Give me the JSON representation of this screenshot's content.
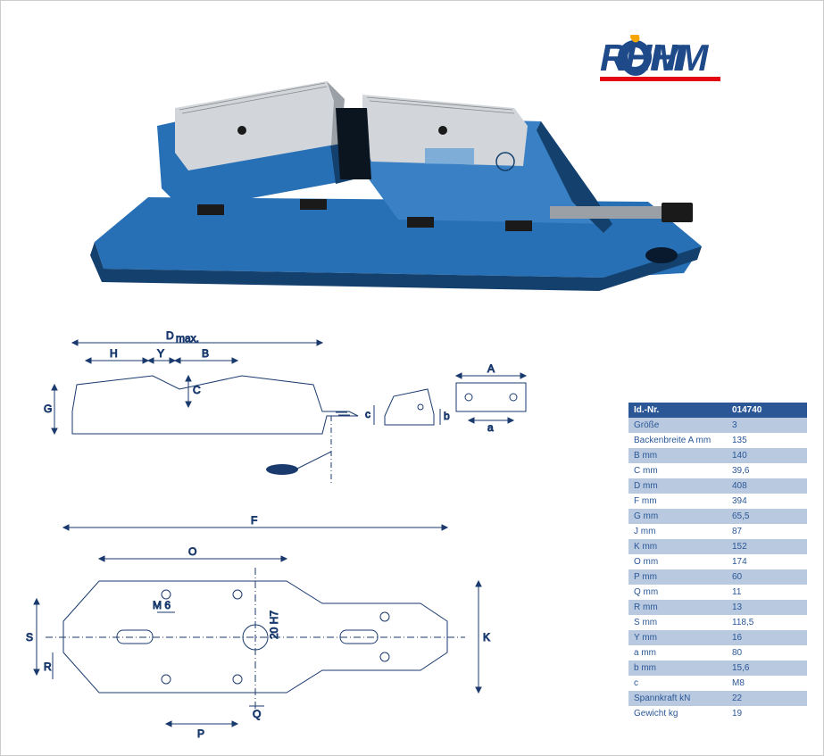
{
  "brand": "RÖHM",
  "logo": {
    "text_color": "#1e4a8a",
    "accent_color": "#e30613",
    "dot_color": "#f7a600"
  },
  "product": {
    "body_color": "#2770b5",
    "body_shadow": "#14406e",
    "jaw_color": "#c8ccd0",
    "jaw_edge": "#888c90",
    "base_dark": "#1a2838"
  },
  "diagram": {
    "stroke": "#1a3a6e",
    "labels": {
      "Dmax": "D",
      "Dmax_sub": "max.",
      "H": "H",
      "Y": "Y",
      "B": "B",
      "C": "C",
      "G": "G",
      "A": "A",
      "a": "a",
      "b": "b",
      "c": "c",
      "F": "F",
      "O": "O",
      "M6": "M 6",
      "H7": "20 H7",
      "S": "S",
      "R": "R",
      "K": "K",
      "P": "P",
      "Q": "Q"
    }
  },
  "specs": {
    "header": {
      "label": "Id.-Nr.",
      "value": "014740"
    },
    "rows": [
      {
        "label": "Größe",
        "value": "3",
        "style": "blue"
      },
      {
        "label": "Backenbreite A mm",
        "value": "135",
        "style": "white"
      },
      {
        "label": "B mm",
        "value": "140",
        "style": "blue"
      },
      {
        "label": "C mm",
        "value": "39,6",
        "style": "white"
      },
      {
        "label": "D mm",
        "value": "408",
        "style": "blue"
      },
      {
        "label": "F mm",
        "value": "394",
        "style": "white"
      },
      {
        "label": "G mm",
        "value": "65,5",
        "style": "blue"
      },
      {
        "label": "J mm",
        "value": "87",
        "style": "white"
      },
      {
        "label": "K mm",
        "value": "152",
        "style": "blue"
      },
      {
        "label": "O mm",
        "value": "174",
        "style": "white"
      },
      {
        "label": "P mm",
        "value": "60",
        "style": "blue"
      },
      {
        "label": "Q mm",
        "value": "11",
        "style": "white"
      },
      {
        "label": "R mm",
        "value": "13",
        "style": "blue"
      },
      {
        "label": "S mm",
        "value": "118,5",
        "style": "white"
      },
      {
        "label": "Y mm",
        "value": "16",
        "style": "blue"
      },
      {
        "label": "a mm",
        "value": "80",
        "style": "white"
      },
      {
        "label": "b mm",
        "value": "15,6",
        "style": "blue"
      },
      {
        "label": "c",
        "value": "M8",
        "style": "white"
      },
      {
        "label": "Spannkraft kN",
        "value": "22",
        "style": "blue"
      },
      {
        "label": "Gewicht kg",
        "value": "19",
        "style": "white"
      }
    ]
  }
}
